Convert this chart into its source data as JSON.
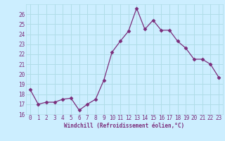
{
  "x": [
    0,
    1,
    2,
    3,
    4,
    5,
    6,
    7,
    8,
    9,
    10,
    11,
    12,
    13,
    14,
    15,
    16,
    17,
    18,
    19,
    20,
    21,
    22,
    23
  ],
  "y": [
    18.5,
    17.0,
    17.2,
    17.2,
    17.5,
    17.6,
    16.4,
    17.0,
    17.5,
    19.4,
    22.2,
    23.3,
    24.3,
    26.6,
    24.5,
    25.4,
    24.4,
    24.4,
    23.3,
    22.6,
    21.5,
    21.5,
    21.0,
    19.7
  ],
  "line_color": "#7B2D7B",
  "marker": "D",
  "marker_size": 2.5,
  "bg_color": "#cceeff",
  "grid_color": "#b0dde8",
  "xlabel": "Windchill (Refroidissement éolien,°C)",
  "xlabel_color": "#7B2D7B",
  "tick_color": "#7B2D7B",
  "label_fontsize": 5.5,
  "ylim": [
    16,
    27
  ],
  "xlim": [
    -0.5,
    23.5
  ],
  "yticks": [
    16,
    17,
    18,
    19,
    20,
    21,
    22,
    23,
    24,
    25,
    26
  ],
  "xticks": [
    0,
    1,
    2,
    3,
    4,
    5,
    6,
    7,
    8,
    9,
    10,
    11,
    12,
    13,
    14,
    15,
    16,
    17,
    18,
    19,
    20,
    21,
    22,
    23
  ]
}
